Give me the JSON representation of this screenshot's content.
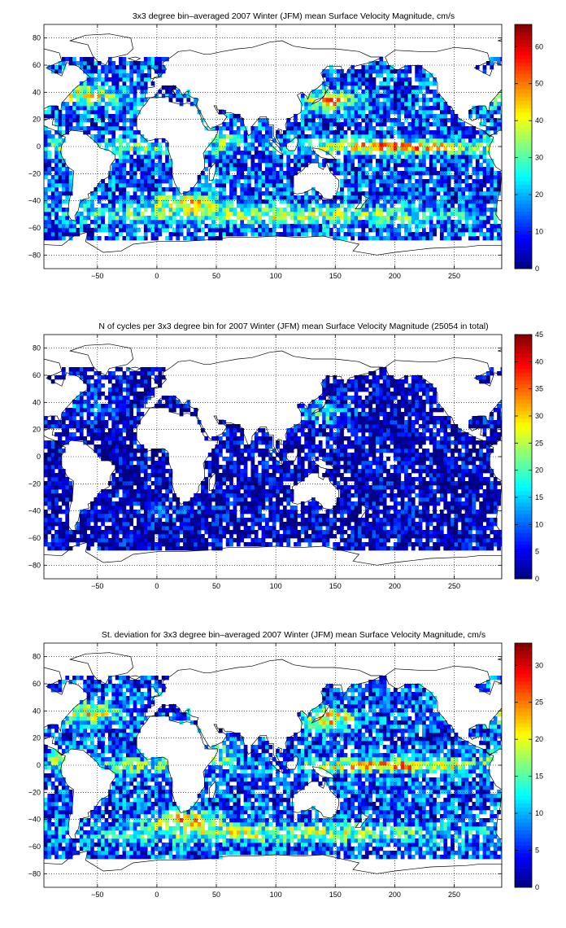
{
  "chart_data": [
    {
      "type": "heatmap",
      "title": "3x3 degree bin–averaged 2007 Winter (JFM) mean Surface Velocity Magnitude, cm/s",
      "xlim": [
        -95,
        290
      ],
      "ylim": [
        -90,
        90
      ],
      "x_ticks": [
        -50,
        0,
        50,
        100,
        150,
        200,
        250
      ],
      "y_ticks": [
        80,
        60,
        40,
        20,
        0,
        -20,
        -40,
        -60,
        -80
      ],
      "grid": true,
      "grid_style": "dotted",
      "bin_size_deg": 3,
      "colormap": "jet",
      "colorbar": {
        "min": 0,
        "max": 66,
        "ticks": [
          0,
          10,
          20,
          30,
          40,
          50,
          60
        ],
        "placement": "right"
      }
    },
    {
      "type": "heatmap",
      "title": "N of cycles per 3x3 degree bin for 2007 Winter (JFM) mean Surface Velocity Magnitude (25054 in total)",
      "xlim": [
        -95,
        290
      ],
      "ylim": [
        -90,
        90
      ],
      "x_ticks": [
        -50,
        0,
        50,
        100,
        150,
        200,
        250
      ],
      "y_ticks": [
        80,
        60,
        40,
        20,
        0,
        -20,
        -40,
        -60,
        -80
      ],
      "grid": true,
      "grid_style": "dotted",
      "bin_size_deg": 3,
      "colormap": "jet",
      "colorbar": {
        "min": 0,
        "max": 45,
        "ticks": [
          0,
          5,
          10,
          15,
          20,
          25,
          30,
          35,
          40,
          45
        ],
        "placement": "right"
      }
    },
    {
      "type": "heatmap",
      "title": "St. deviation for 3x3 degree bin–averaged 2007 Winter (JFM) mean Surface Velocity Magnitude, cm/s",
      "xlim": [
        -95,
        290
      ],
      "ylim": [
        -90,
        90
      ],
      "x_ticks": [
        -50,
        0,
        50,
        100,
        150,
        200,
        250
      ],
      "y_ticks": [
        80,
        60,
        40,
        20,
        0,
        -20,
        -40,
        -60,
        -80
      ],
      "grid": true,
      "grid_style": "dotted",
      "bin_size_deg": 3,
      "colormap": "jet",
      "colorbar": {
        "min": 0,
        "max": 33,
        "ticks": [
          0,
          5,
          10,
          15,
          20,
          25,
          30
        ],
        "placement": "right"
      }
    }
  ],
  "colors": {
    "land": "#ffffff",
    "coastline": "#000000",
    "axes": "#000000",
    "grid": "#000000"
  }
}
